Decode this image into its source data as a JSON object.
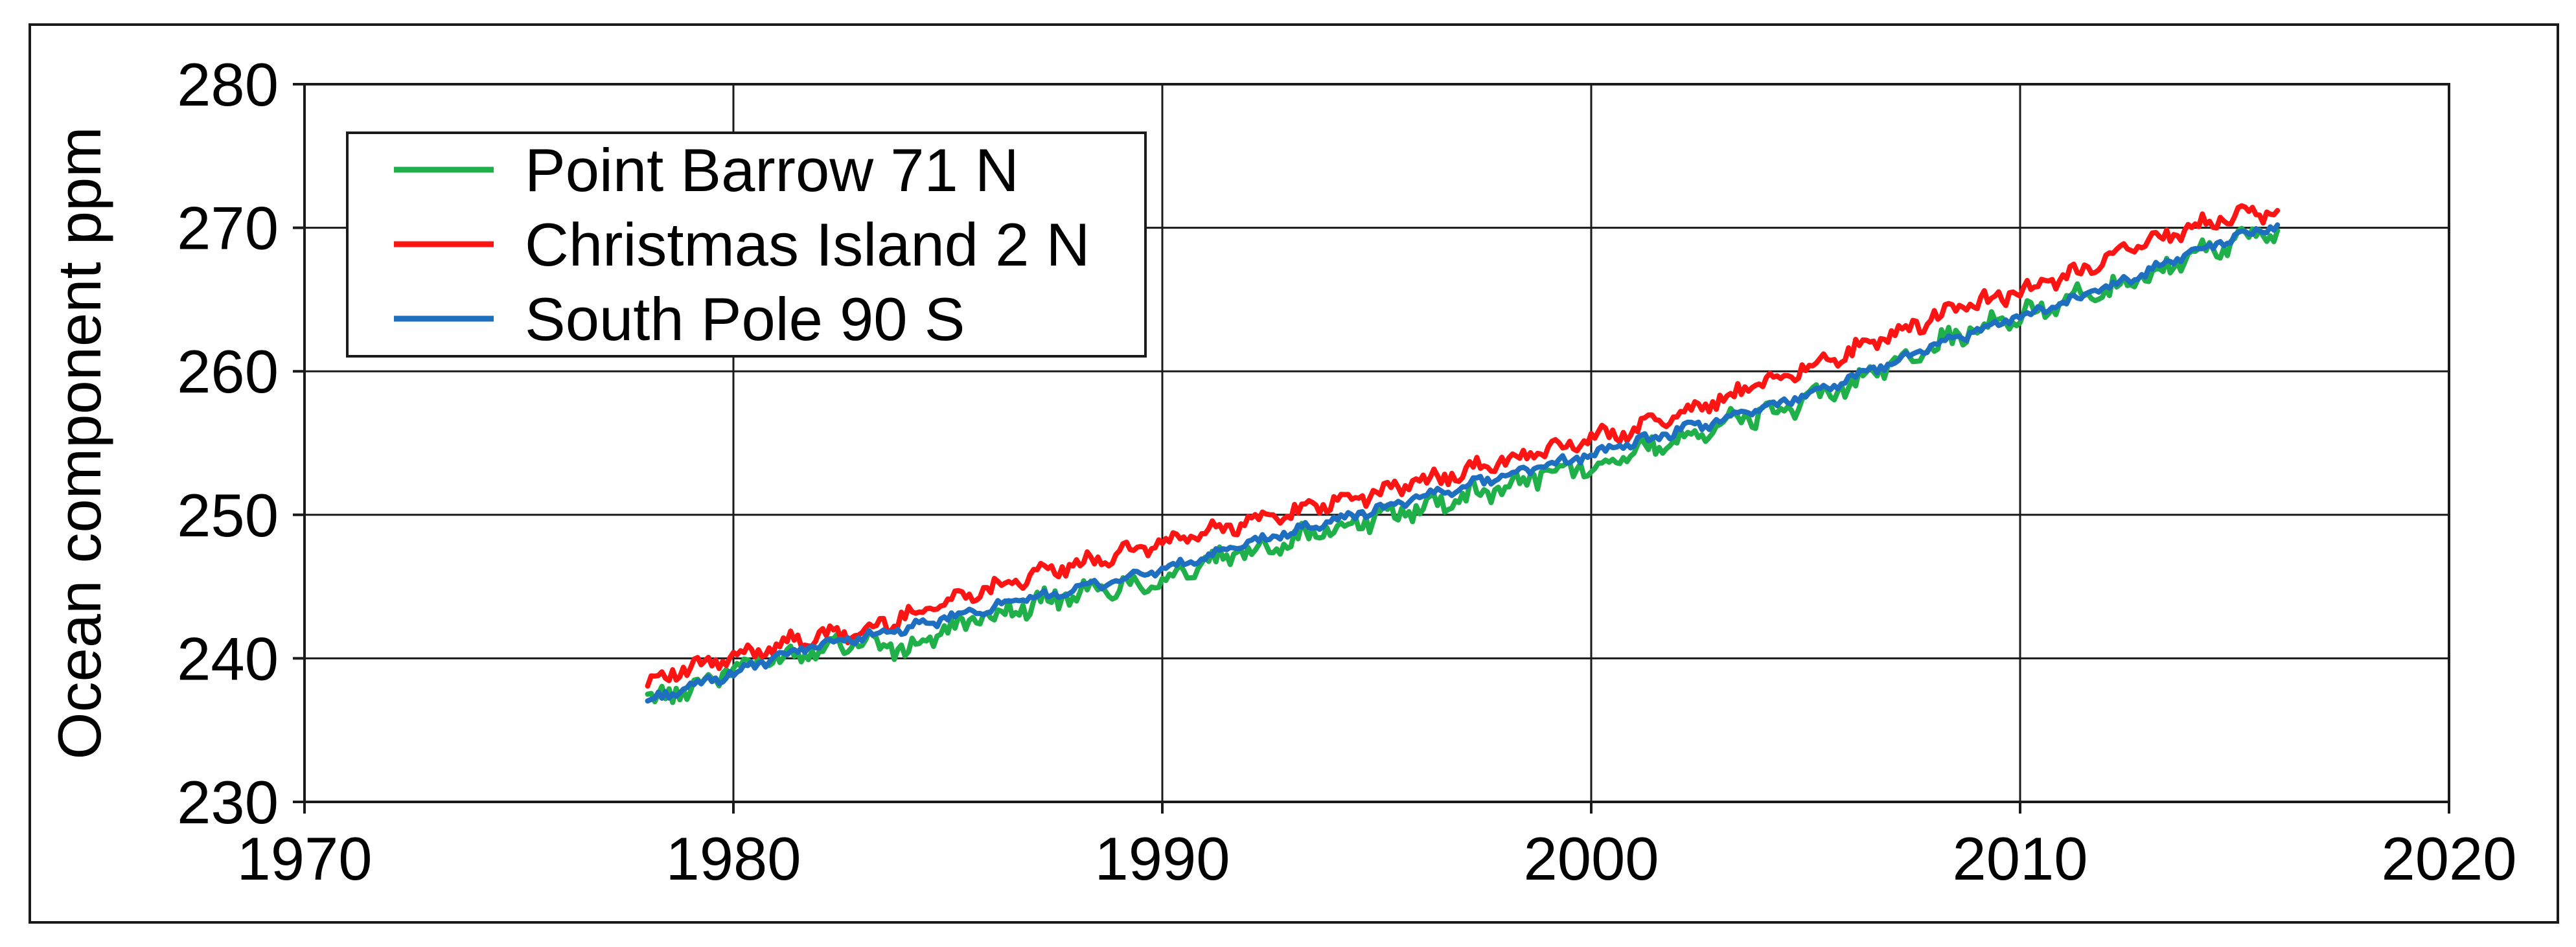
{
  "chart_data": {
    "type": "line",
    "title": "",
    "xlabel": "",
    "ylabel": "Ocean component ppm",
    "xlim": [
      1970,
      2020
    ],
    "ylim": [
      230,
      280
    ],
    "xticks": [
      "1970",
      "1980",
      "1990",
      "2000",
      "2010",
      "2020"
    ],
    "yticks": [
      "230",
      "240",
      "250",
      "260",
      "270",
      "280"
    ],
    "grid": true,
    "legend_position": "top-left",
    "colors": {
      "point_barrow": "#1fb04a",
      "christmas_island": "#ff1414",
      "south_pole": "#1f6fc0"
    },
    "series": [
      {
        "name": "Point Barrow 71 N",
        "color": "#1fb04a",
        "x": [
          1978.0,
          1979.0,
          1980.0,
          1981.0,
          1982.0,
          1983.0,
          1984.0,
          1985.0,
          1986.0,
          1987.0,
          1988.0,
          1989.0,
          1990.0,
          1991.0,
          1992.0,
          1993.0,
          1994.0,
          1995.0,
          1996.0,
          1997.0,
          1998.0,
          1999.0,
          2000.0,
          2001.0,
          2002.0,
          2003.0,
          2004.0,
          2005.0,
          2006.0,
          2007.0,
          2008.0,
          2009.0,
          2010.0,
          2011.0,
          2012.0,
          2013.0,
          2014.0,
          2015.0,
          2016.0
        ],
        "y": [
          237.0,
          238.0,
          239.3,
          240.0,
          240.8,
          241.3,
          240.5,
          242.0,
          243.0,
          243.8,
          244.5,
          245.0,
          245.5,
          246.5,
          247.5,
          248.3,
          249.0,
          249.8,
          250.5,
          251.3,
          252.0,
          253.0,
          253.5,
          254.3,
          255.3,
          256.3,
          257.0,
          257.8,
          259.0,
          260.5,
          261.8,
          263.0,
          263.8,
          265.0,
          265.5,
          266.8,
          268.0,
          269.0,
          269.8
        ]
      },
      {
        "name": "Christmas Island 2 N",
        "color": "#ff1414",
        "x": [
          1978.0,
          1979.0,
          1980.0,
          1981.0,
          1982.0,
          1983.0,
          1984.0,
          1985.0,
          1986.0,
          1987.0,
          1988.0,
          1989.0,
          1990.0,
          1991.0,
          1992.0,
          1993.0,
          1994.0,
          1995.0,
          1996.0,
          1997.0,
          1998.0,
          1999.0,
          2000.0,
          2001.0,
          2002.0,
          2003.0,
          2004.0,
          2005.0,
          2006.0,
          2007.0,
          2008.0,
          2009.0,
          2010.0,
          2011.0,
          2012.0,
          2013.0,
          2014.0,
          2015.0,
          2016.0
        ],
        "y": [
          238.5,
          239.3,
          240.0,
          241.0,
          241.5,
          241.8,
          243.0,
          244.0,
          245.0,
          245.8,
          246.5,
          247.3,
          248.0,
          248.8,
          249.5,
          250.2,
          250.8,
          251.5,
          252.3,
          253.0,
          253.8,
          254.5,
          255.3,
          256.0,
          257.0,
          258.0,
          259.3,
          260.3,
          261.3,
          262.5,
          263.8,
          264.8,
          265.5,
          266.5,
          267.8,
          269.0,
          270.0,
          270.8,
          271.2
        ]
      },
      {
        "name": "South Pole 90 S",
        "color": "#1f6fc0",
        "x": [
          1978.0,
          1979.0,
          1980.0,
          1981.0,
          1982.0,
          1983.0,
          1984.0,
          1985.0,
          1986.0,
          1987.0,
          1988.0,
          1989.0,
          1990.0,
          1991.0,
          1992.0,
          1993.0,
          1994.0,
          1995.0,
          1996.0,
          1997.0,
          1998.0,
          1999.0,
          2000.0,
          2001.0,
          2002.0,
          2003.0,
          2004.0,
          2005.0,
          2006.0,
          2007.0,
          2008.0,
          2009.0,
          2010.0,
          2011.0,
          2012.0,
          2013.0,
          2014.0,
          2015.0,
          2016.0
        ],
        "y": [
          237.0,
          238.0,
          239.0,
          240.0,
          241.0,
          241.5,
          242.0,
          242.8,
          243.5,
          244.2,
          244.8,
          245.5,
          246.2,
          247.0,
          248.0,
          248.8,
          249.6,
          250.4,
          251.2,
          252.0,
          252.8,
          253.5,
          254.2,
          255.0,
          255.8,
          256.6,
          257.4,
          258.4,
          259.4,
          260.6,
          261.8,
          262.8,
          263.8,
          264.8,
          265.8,
          267.0,
          268.3,
          269.3,
          270.2
        ]
      }
    ]
  }
}
